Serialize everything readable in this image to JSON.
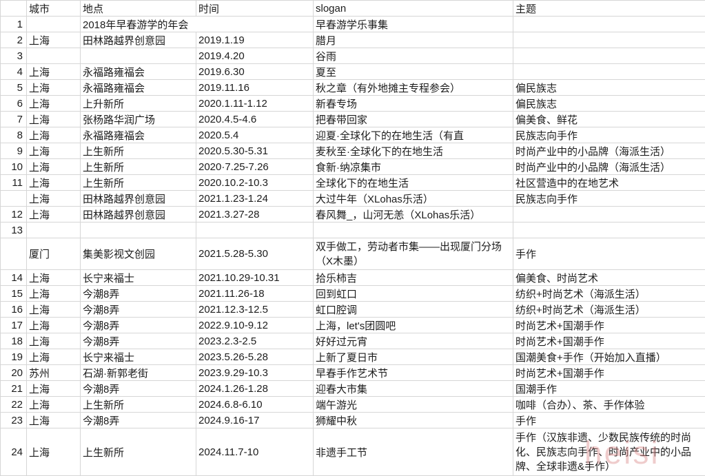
{
  "colors": {
    "gridline": "#d6d6d6",
    "text": "#1c1c1c",
    "watermark_pink": "#dd8f8f"
  },
  "watermark": {
    "text": "heisi"
  },
  "table": {
    "headers": [
      "",
      "城市",
      "地点",
      "时间",
      "slogan",
      "主题"
    ],
    "rows": [
      {
        "num": "1",
        "city": "",
        "venue": "2018年早春游学的年会",
        "time": "",
        "slogan": "早春游学乐事集",
        "theme": "",
        "span2": true
      },
      {
        "num": "2",
        "city": "上海",
        "venue": "田林路越界创意园",
        "time": "2019.1.19",
        "slogan": "腊月",
        "theme": ""
      },
      {
        "num": "3",
        "city": "",
        "venue": "",
        "time": "2019.4.20",
        "slogan": "谷雨",
        "theme": ""
      },
      {
        "num": "4",
        "city": "上海",
        "venue": "永福路雍福会",
        "time": "2019.6.30",
        "slogan": "夏至",
        "theme": ""
      },
      {
        "num": "5",
        "city": "上海",
        "venue": "永福路雍福会",
        "time": "2019.11.16",
        "slogan": "秋之章（有外地摊主专程参会）",
        "theme": "偏民族志"
      },
      {
        "num": "6",
        "city": "上海",
        "venue": "上升新所",
        "time": "2020.1.11-1.12",
        "slogan": "新春专场",
        "theme": "偏民族志"
      },
      {
        "num": "7",
        "city": "上海",
        "venue": "张杨路华润广场",
        "time": "2020.4.5-4.6",
        "slogan": "把春带回家",
        "theme": "偏美食、鲜花"
      },
      {
        "num": "8",
        "city": "上海",
        "venue": "永福路雍福会",
        "time": "2020.5.4",
        "slogan": "迎夏·全球化下的在地生活（有直",
        "theme": "民族志向手作"
      },
      {
        "num": "9",
        "city": "上海",
        "venue": "上生新所",
        "time": "2020.5.30-5.31",
        "slogan": "麦秋至·全球化下的在地生活",
        "theme": "时尚产业中的小品牌（海派生活）"
      },
      {
        "num": "10",
        "city": "上海",
        "venue": "上生新所",
        "time": "2020·7.25-7.26",
        "slogan": "食新·纳凉集市",
        "theme": "时尚产业中的小品牌（海派生活）"
      },
      {
        "num": "11",
        "city": "上海",
        "venue": "上生新所",
        "time": "2020.10.2-10.3",
        "slogan": "全球化下的在地生活",
        "theme": "社区营造中的在地艺术"
      },
      {
        "num": "",
        "city": "上海",
        "venue": "田林路越界创意园",
        "time": "2021.1.23-1.24",
        "slogan": "大过牛年（XLohas乐活）",
        "theme": "民族志向手作"
      },
      {
        "num": "12",
        "city": "上海",
        "venue": "田林路越界创意园",
        "time": "2021.3.27-28",
        "slogan": "春风舞_，山河无恙（XLohas乐活）",
        "theme": ""
      },
      {
        "num": "13",
        "city": "",
        "venue": "",
        "time": "",
        "slogan": "",
        "theme": ""
      },
      {
        "num": "",
        "city": "厦门",
        "venue": "集美影视文创园",
        "time": "2021.5.28-5.30",
        "slogan": "双手做工，劳动者市集——出现厦门分场（X木墨）",
        "theme": "手作",
        "h": 2,
        "wrapSlogan": true
      },
      {
        "num": "14",
        "city": "上海",
        "venue": "长宁来福士",
        "time": "2021.10.29-10.31",
        "slogan": "拾乐柿吉",
        "theme": "偏美食、时尚艺术"
      },
      {
        "num": "15",
        "city": "上海",
        "venue": "今潮8弄",
        "time": "2021.11.26-18",
        "slogan": "回到虹口",
        "theme": "纺织+时尚艺术（海派生活）"
      },
      {
        "num": "16",
        "city": "上海",
        "venue": "今潮8弄",
        "time": "2021.12.3-12.5",
        "slogan": "虹口腔调",
        "theme": "纺织+时尚艺术（海派生活）"
      },
      {
        "num": "17",
        "city": "上海",
        "venue": "今潮8弄",
        "time": "2022.9.10-9.12",
        "slogan": "上海，let's团圆吧",
        "theme": "时尚艺术+国潮手作"
      },
      {
        "num": "18",
        "city": "上海",
        "venue": "今潮8弄",
        "time": "2023.2.3-2.5",
        "slogan": "好好过元宵",
        "theme": "时尚艺术+国潮手作"
      },
      {
        "num": "19",
        "city": "上海",
        "venue": "长宁来福士",
        "time": "2023.5.26-5.28",
        "slogan": "上新了夏日市",
        "theme": "国潮美食+手作（开始加入直播）"
      },
      {
        "num": "20",
        "city": "苏州",
        "venue": "石湖·新郭老街",
        "time": "2023.9.29-10.3",
        "slogan": "早春手作艺术节",
        "theme": "时尚艺术+国潮手作"
      },
      {
        "num": "21",
        "city": "上海",
        "venue": "今潮8弄",
        "time": "2024.1.26-1.28",
        "slogan": "迎春大市集",
        "theme": "国潮手作"
      },
      {
        "num": "22",
        "city": "上海",
        "venue": "上生新所",
        "time": "2024.6.8-6.10",
        "slogan": "端午游光",
        "theme": "咖啡（合办）、茶、手作体验"
      },
      {
        "num": "23",
        "city": "上海",
        "venue": "今潮8弄",
        "time": "2024.9.16-17",
        "slogan": "狮耀中秋",
        "theme": "手作"
      },
      {
        "num": "24",
        "city": "上海",
        "venue": "上生新所",
        "time": "2024.11.7-10",
        "slogan": "非遗手工节",
        "theme": "手作（汉族非遗、少数民族传统的时尚化、民族志向手作、时尚产业中的小品牌、全球非遗&手作）",
        "h": 3,
        "wrapTheme": true
      }
    ]
  }
}
